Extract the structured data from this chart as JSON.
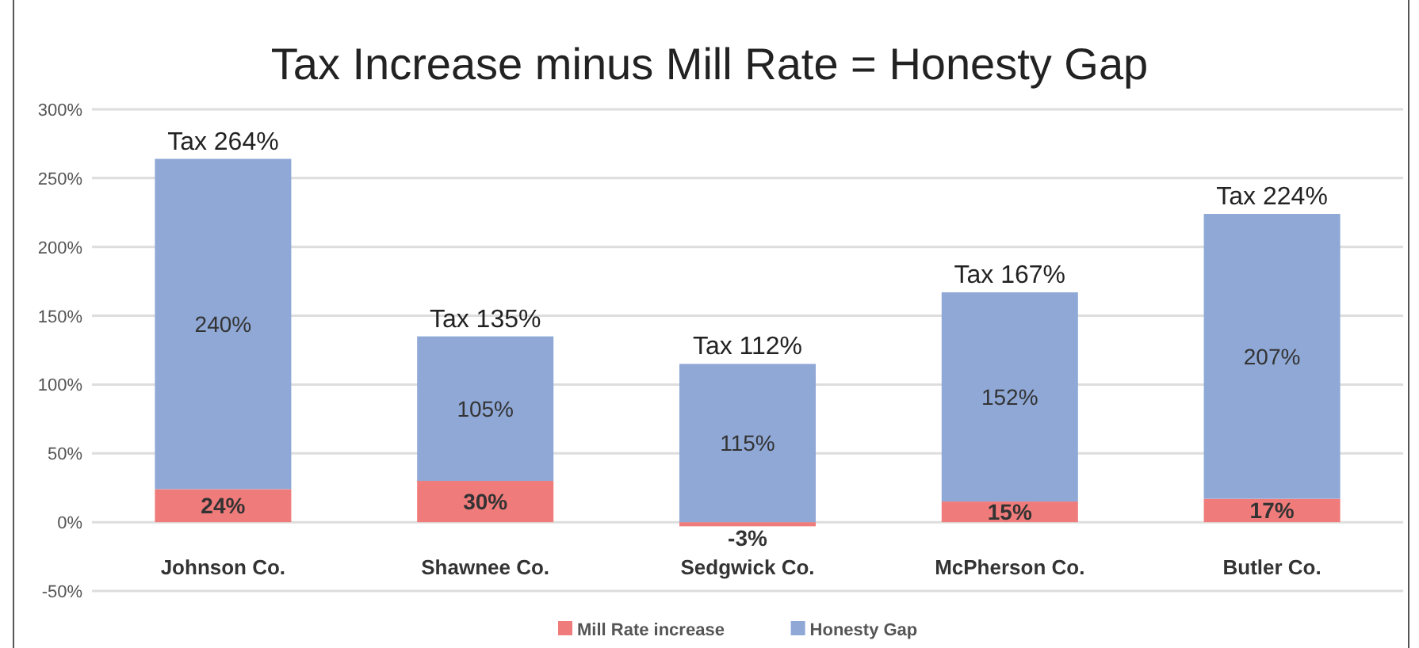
{
  "chart_data": {
    "type": "bar",
    "title": "Tax Increase minus Mill Rate = Honesty Gap",
    "categories": [
      "Johnson Co.",
      "Shawnee Co.",
      "Sedgwick Co.",
      "McPherson Co.",
      "Butler Co."
    ],
    "stacked": true,
    "series": [
      {
        "name": "Mill Rate increase",
        "color": "#f07b7b",
        "values": [
          24,
          30,
          -3,
          15,
          17
        ],
        "value_labels": [
          "24%",
          "30%",
          "-3%",
          "15%",
          "17%"
        ]
      },
      {
        "name": "Honesty Gap",
        "color": "#8fa8d6",
        "values": [
          240,
          105,
          115,
          152,
          207
        ],
        "value_labels": [
          "240%",
          "105%",
          "115%",
          "152%",
          "207%"
        ]
      }
    ],
    "totals": [
      "Tax 264%",
      "Tax 135%",
      "Tax 112%",
      "Tax 167%",
      "Tax 224%"
    ],
    "ylim": [
      -50,
      300
    ],
    "yticks": [
      {
        "value": -50,
        "label": "-50%"
      },
      {
        "value": 0,
        "label": "0%"
      },
      {
        "value": 50,
        "label": "50%"
      },
      {
        "value": 100,
        "label": "100%"
      },
      {
        "value": 150,
        "label": "150%"
      },
      {
        "value": 200,
        "label": "200%"
      },
      {
        "value": 250,
        "label": "250%"
      },
      {
        "value": 300,
        "label": "300%"
      }
    ],
    "grid": "y",
    "legend": "bottom"
  }
}
